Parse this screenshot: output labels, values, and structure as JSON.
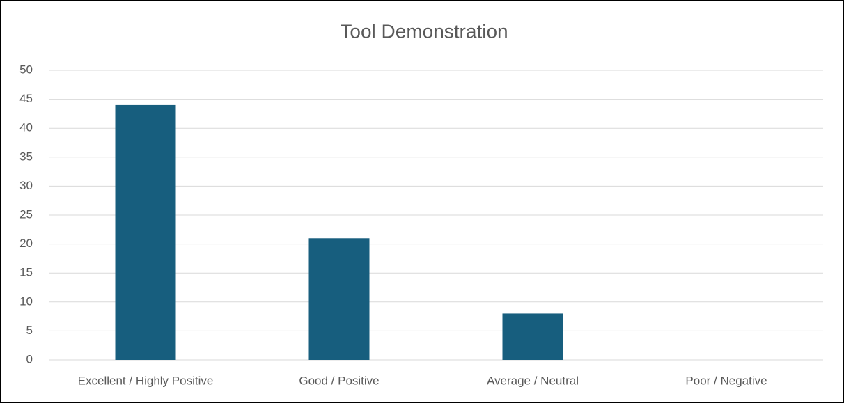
{
  "chart_data": {
    "type": "bar",
    "title": "Tool Demonstration",
    "categories": [
      "Excellent / Highly Positive",
      "Good / Positive",
      "Average / Neutral",
      "Poor / Negative"
    ],
    "values": [
      44,
      21,
      8,
      0
    ],
    "color": "#175e7e",
    "ylim": [
      0,
      50
    ],
    "yticks": [
      0,
      5,
      10,
      15,
      20,
      25,
      30,
      35,
      40,
      45,
      50
    ],
    "grid": true
  }
}
